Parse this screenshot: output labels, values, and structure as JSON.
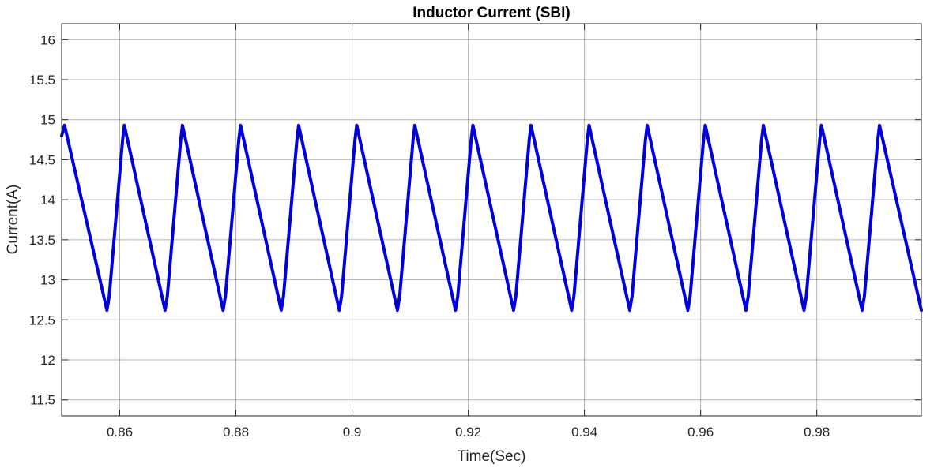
{
  "chart_data": {
    "type": "line",
    "title": "Inductor Current (SBI)",
    "xlabel": "Time(Sec)",
    "ylabel": "Current(A)",
    "xlim": [
      0.85,
      0.998
    ],
    "ylim": [
      11.3,
      16.2
    ],
    "x_ticks": [
      0.86,
      0.88,
      0.9,
      0.92,
      0.94,
      0.96,
      0.98
    ],
    "x_tick_labels": [
      "0.86",
      "0.88",
      "0.9",
      "0.92",
      "0.94",
      "0.96",
      "0.98"
    ],
    "y_ticks": [
      11.5,
      12,
      12.5,
      13,
      13.5,
      14,
      14.5,
      15,
      15.5,
      16
    ],
    "y_tick_labels": [
      "11.5",
      "12",
      "12.5",
      "13",
      "13.5",
      "14",
      "14.5",
      "15",
      "15.5",
      "16"
    ],
    "grid": true,
    "line_color": "#0000DD",
    "series": [
      {
        "x": [
          0.85,
          0.8505,
          0.8578,
          0.8582,
          0.8605,
          0.8608,
          0.8678,
          0.8682,
          0.8705,
          0.8708,
          0.8778,
          0.8782,
          0.8805,
          0.8808,
          0.8878,
          0.8882,
          0.8905,
          0.8908,
          0.8978,
          0.8982,
          0.9005,
          0.9008,
          0.9078,
          0.9082,
          0.9105,
          0.9108,
          0.9178,
          0.9182,
          0.9205,
          0.9208,
          0.9278,
          0.9282,
          0.9305,
          0.9308,
          0.9378,
          0.9382,
          0.9405,
          0.9408,
          0.9478,
          0.9482,
          0.9505,
          0.9508,
          0.9578,
          0.9582,
          0.9605,
          0.9608,
          0.9678,
          0.9682,
          0.9705,
          0.9708,
          0.9778,
          0.9782,
          0.9805,
          0.9808,
          0.9878,
          0.9882,
          0.9905,
          0.9908,
          0.998
        ],
        "y": [
          14.8,
          14.93,
          12.62,
          12.8,
          14.75,
          14.93,
          12.62,
          12.8,
          14.75,
          14.93,
          12.62,
          12.8,
          14.75,
          14.93,
          12.62,
          12.8,
          14.75,
          14.93,
          12.62,
          12.8,
          14.75,
          14.93,
          12.62,
          12.8,
          14.75,
          14.93,
          12.62,
          12.8,
          14.75,
          14.93,
          12.62,
          12.8,
          14.75,
          14.93,
          12.62,
          12.8,
          14.75,
          14.93,
          12.62,
          12.8,
          14.75,
          14.93,
          12.62,
          12.8,
          14.75,
          14.93,
          12.62,
          12.8,
          14.75,
          14.93,
          12.62,
          12.8,
          14.75,
          14.93,
          12.62,
          12.8,
          14.75,
          14.93,
          12.62
        ]
      }
    ]
  }
}
